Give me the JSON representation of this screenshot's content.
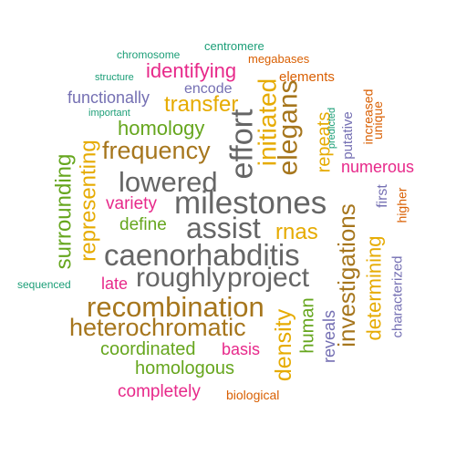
{
  "words": [
    {
      "key": "chromosome",
      "text": "chromosome",
      "color": "#1b9e77"
    },
    {
      "key": "centromere",
      "text": "centromere",
      "color": "#1b9e77"
    },
    {
      "key": "megabases",
      "text": "megabases",
      "color": "#d95f02"
    },
    {
      "key": "structure",
      "text": "structure",
      "color": "#1b9e77"
    },
    {
      "key": "identifying",
      "text": "identifying",
      "color": "#e7298a"
    },
    {
      "key": "elements",
      "text": "elements",
      "color": "#d95f02"
    },
    {
      "key": "encode",
      "text": "encode",
      "color": "#7570b3"
    },
    {
      "key": "functionally",
      "text": "functionally",
      "color": "#7570b3"
    },
    {
      "key": "transfer",
      "text": "transfer",
      "color": "#e6ab02"
    },
    {
      "key": "important",
      "text": "important",
      "color": "#1b9e77"
    },
    {
      "key": "initiated",
      "text": "initiated",
      "color": "#e6ab02"
    },
    {
      "key": "elegans",
      "text": "elegans",
      "color": "#a6761d"
    },
    {
      "key": "effort",
      "text": "effort",
      "color": "#666666"
    },
    {
      "key": "homology",
      "text": "homology",
      "color": "#66a61e"
    },
    {
      "key": "repeats",
      "text": "repeats",
      "color": "#e6ab02"
    },
    {
      "key": "predicted",
      "text": "predicted",
      "color": "#1b9e77"
    },
    {
      "key": "putative",
      "text": "putative",
      "color": "#7570b3"
    },
    {
      "key": "increased",
      "text": "increased",
      "color": "#d95f02"
    },
    {
      "key": "unique",
      "text": "unique",
      "color": "#d95f02"
    },
    {
      "key": "frequency",
      "text": "frequency",
      "color": "#a6761d"
    },
    {
      "key": "numerous",
      "text": "numerous",
      "color": "#e7298a"
    },
    {
      "key": "representing",
      "text": "representing",
      "color": "#e6ab02"
    },
    {
      "key": "surrounding",
      "text": "surrounding",
      "color": "#66a61e"
    },
    {
      "key": "lowered",
      "text": "lowered",
      "color": "#666666"
    },
    {
      "key": "first",
      "text": "first",
      "color": "#7570b3"
    },
    {
      "key": "higher",
      "text": "higher",
      "color": "#d95f02"
    },
    {
      "key": "variety",
      "text": "variety",
      "color": "#e7298a"
    },
    {
      "key": "milestones",
      "text": "milestones",
      "color": "#666666"
    },
    {
      "key": "define",
      "text": "define",
      "color": "#66a61e"
    },
    {
      "key": "assist",
      "text": "assist",
      "color": "#666666"
    },
    {
      "key": "rnas",
      "text": "rnas",
      "color": "#e6ab02"
    },
    {
      "key": "investigations",
      "text": "investigations",
      "color": "#a6761d"
    },
    {
      "key": "determining",
      "text": "determining",
      "color": "#e6ab02"
    },
    {
      "key": "caenorhabditis",
      "text": "caenorhabditis",
      "color": "#666666"
    },
    {
      "key": "characterized",
      "text": "characterized",
      "color": "#7570b3"
    },
    {
      "key": "sequenced",
      "text": "sequenced",
      "color": "#1b9e77"
    },
    {
      "key": "late",
      "text": "late",
      "color": "#e7298a"
    },
    {
      "key": "roughly",
      "text": "roughly",
      "color": "#666666"
    },
    {
      "key": "project",
      "text": "project",
      "color": "#666666"
    },
    {
      "key": "recombination",
      "text": "recombination",
      "color": "#a6761d"
    },
    {
      "key": "human",
      "text": "human",
      "color": "#66a61e"
    },
    {
      "key": "density",
      "text": "density",
      "color": "#e6ab02"
    },
    {
      "key": "heterochromatic",
      "text": "heterochromatic",
      "color": "#a6761d"
    },
    {
      "key": "reveals",
      "text": "reveals",
      "color": "#7570b3"
    },
    {
      "key": "coordinated",
      "text": "coordinated",
      "color": "#66a61e"
    },
    {
      "key": "basis",
      "text": "basis",
      "color": "#e7298a"
    },
    {
      "key": "homologous",
      "text": "homologous",
      "color": "#66a61e"
    },
    {
      "key": "completely",
      "text": "completely",
      "color": "#e7298a"
    },
    {
      "key": "biological",
      "text": "biological",
      "color": "#d95f02"
    }
  ]
}
